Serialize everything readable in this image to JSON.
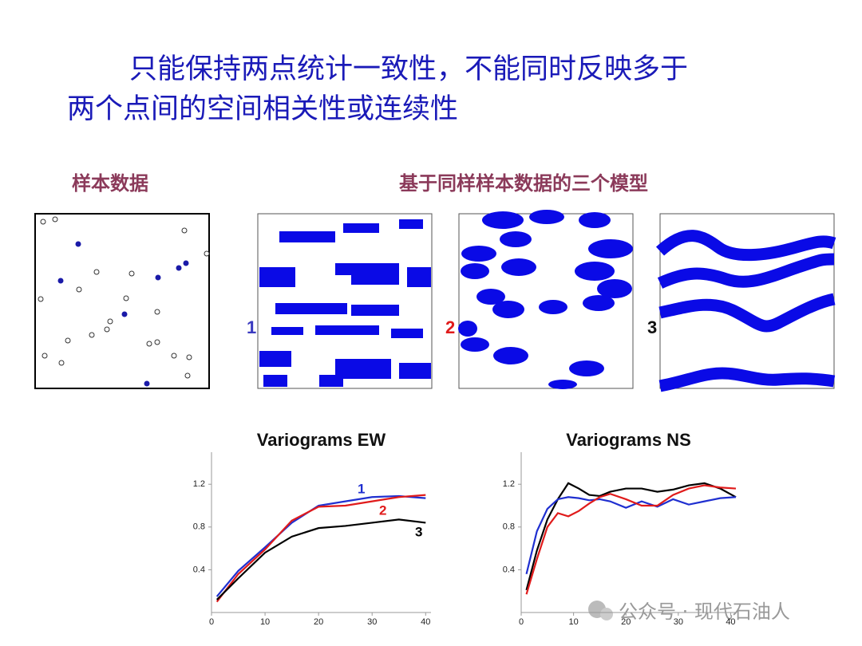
{
  "title": [
    "只能保持两点统计一致性，不能同时反映多于",
    "两个点间的空间相关性或连续性"
  ],
  "sample_label": "样本数据",
  "models_label": "基于同样样本数据的三个模型",
  "model_labels": [
    "1",
    "2",
    "3"
  ],
  "watermark": "公众号 · 现代石油人",
  "chart_data": [
    {
      "type": "line",
      "title": "Variograms EW",
      "x": [
        1,
        5,
        10,
        15,
        20,
        25,
        30,
        35,
        40
      ],
      "series": [
        {
          "name": "1",
          "color": "#1f2fd0",
          "values": [
            0.15,
            0.39,
            0.61,
            0.84,
            1.0,
            1.04,
            1.08,
            1.09,
            1.07
          ]
        },
        {
          "name": "2",
          "color": "#e01b1b",
          "values": [
            0.1,
            0.36,
            0.59,
            0.86,
            0.99,
            1.0,
            1.04,
            1.08,
            1.1
          ]
        },
        {
          "name": "3",
          "color": "#000000",
          "values": [
            0.12,
            0.32,
            0.56,
            0.71,
            0.79,
            0.81,
            0.84,
            0.87,
            0.84
          ]
        }
      ],
      "xlim": [
        0,
        41
      ],
      "ylim": [
        0,
        1.5
      ],
      "xticks": [
        0,
        10,
        20,
        30,
        40
      ],
      "yticks": [
        0.4,
        0.8,
        1.2
      ]
    },
    {
      "type": "line",
      "title": "Variograms NS",
      "x": [
        1,
        3,
        5,
        7,
        9,
        11,
        13,
        15,
        17,
        20,
        23,
        26,
        29,
        32,
        35,
        38,
        41
      ],
      "series": [
        {
          "color": "#000000",
          "values": [
            0.21,
            0.58,
            0.87,
            1.06,
            1.21,
            1.16,
            1.1,
            1.09,
            1.13,
            1.16,
            1.16,
            1.13,
            1.15,
            1.19,
            1.21,
            1.16,
            1.08
          ]
        },
        {
          "color": "#1f2fd0",
          "values": [
            0.36,
            0.76,
            0.97,
            1.06,
            1.08,
            1.07,
            1.05,
            1.06,
            1.04,
            0.98,
            1.04,
            0.99,
            1.06,
            1.01,
            1.04,
            1.07,
            1.08
          ]
        },
        {
          "color": "#e01b1b",
          "values": [
            0.17,
            0.5,
            0.8,
            0.93,
            0.9,
            0.95,
            1.02,
            1.08,
            1.11,
            1.06,
            1.0,
            1.0,
            1.1,
            1.16,
            1.19,
            1.17,
            1.16
          ]
        }
      ],
      "xlim": [
        0,
        41
      ],
      "ylim": [
        0,
        1.5
      ],
      "xticks": [
        0,
        10,
        20,
        30,
        40
      ],
      "yticks": [
        0.4,
        0.8,
        1.2
      ]
    }
  ]
}
